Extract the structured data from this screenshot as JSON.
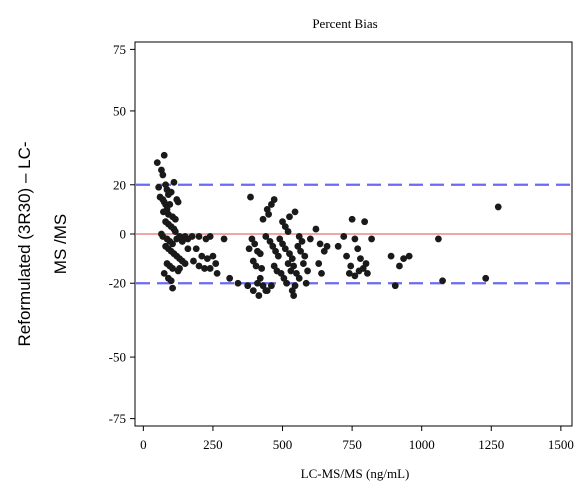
{
  "chart_data": {
    "type": "scatter",
    "title": "Percent Bias",
    "xlabel": "LC-MS/MS (ng/mL)",
    "ylabel_lines": [
      "Reformulated  (3R30) – LC-",
      "MS /MS"
    ],
    "xlim": [
      -30,
      1540
    ],
    "ylim": [
      -78,
      78
    ],
    "x_ticks": [
      0,
      250,
      500,
      750,
      1000,
      1250,
      1500
    ],
    "x_tick_labels": [
      "0",
      "250",
      "500",
      "750",
      "1000",
      "1250",
      "1500"
    ],
    "y_ticks": [
      75,
      50,
      20,
      0,
      -20,
      -50,
      -75
    ],
    "y_tick_labels": [
      "75",
      "50",
      "20",
      "0",
      "-20",
      "-50",
      "-75"
    ],
    "grid": false,
    "reference_lines": [
      {
        "y": 20,
        "style": "dashed",
        "color": "#6b6bf0"
      },
      {
        "y": 0,
        "style": "solid",
        "color": "#e87070"
      },
      {
        "y": -20,
        "style": "dashed",
        "color": "#6b6bf0"
      }
    ],
    "point_color": "#1a1a1a",
    "points": [
      [
        50,
        29
      ],
      [
        65,
        26
      ],
      [
        75,
        32
      ],
      [
        70,
        24
      ],
      [
        80,
        20
      ],
      [
        55,
        19
      ],
      [
        85,
        18
      ],
      [
        90,
        16
      ],
      [
        110,
        21
      ],
      [
        100,
        17
      ],
      [
        60,
        15
      ],
      [
        70,
        14
      ],
      [
        75,
        13
      ],
      [
        95,
        12
      ],
      [
        80,
        12
      ],
      [
        85,
        10
      ],
      [
        72,
        9
      ],
      [
        90,
        8
      ],
      [
        105,
        7
      ],
      [
        115,
        6
      ],
      [
        120,
        14
      ],
      [
        125,
        13
      ],
      [
        110,
        2
      ],
      [
        80,
        5
      ],
      [
        90,
        4
      ],
      [
        100,
        3
      ],
      [
        115,
        1
      ],
      [
        65,
        0
      ],
      [
        70,
        -1
      ],
      [
        85,
        -2
      ],
      [
        95,
        -3
      ],
      [
        105,
        -4
      ],
      [
        120,
        -2
      ],
      [
        130,
        -1
      ],
      [
        140,
        -3
      ],
      [
        150,
        -1
      ],
      [
        160,
        -2
      ],
      [
        175,
        -1
      ],
      [
        80,
        -5
      ],
      [
        90,
        -6
      ],
      [
        100,
        -7
      ],
      [
        110,
        -8
      ],
      [
        120,
        -9
      ],
      [
        130,
        -10
      ],
      [
        140,
        -11
      ],
      [
        85,
        -12
      ],
      [
        95,
        -13
      ],
      [
        105,
        -14
      ],
      [
        125,
        -15
      ],
      [
        75,
        -16
      ],
      [
        90,
        -18
      ],
      [
        100,
        -19
      ],
      [
        105,
        -22
      ],
      [
        140,
        -3
      ],
      [
        160,
        -6
      ],
      [
        150,
        -12
      ],
      [
        130,
        -14
      ],
      [
        200,
        -1
      ],
      [
        225,
        -2
      ],
      [
        240,
        -1
      ],
      [
        190,
        -6
      ],
      [
        210,
        -9
      ],
      [
        230,
        -10
      ],
      [
        250,
        -9
      ],
      [
        260,
        -12
      ],
      [
        220,
        -14
      ],
      [
        240,
        -14
      ],
      [
        200,
        -13
      ],
      [
        180,
        -11
      ],
      [
        265,
        -16
      ],
      [
        290,
        -2
      ],
      [
        310,
        -18
      ],
      [
        340,
        -20
      ],
      [
        375,
        -21
      ],
      [
        395,
        -23
      ],
      [
        385,
        15
      ],
      [
        390,
        -2
      ],
      [
        400,
        -4
      ],
      [
        380,
        -6
      ],
      [
        410,
        -7
      ],
      [
        420,
        -8
      ],
      [
        395,
        -11
      ],
      [
        405,
        -13
      ],
      [
        425,
        -14
      ],
      [
        420,
        -18
      ],
      [
        410,
        -20
      ],
      [
        430,
        -21
      ],
      [
        415,
        -25
      ],
      [
        440,
        -23
      ],
      [
        430,
        6
      ],
      [
        445,
        10
      ],
      [
        450,
        8
      ],
      [
        460,
        12
      ],
      [
        470,
        14
      ],
      [
        440,
        -1
      ],
      [
        455,
        -3
      ],
      [
        465,
        -5
      ],
      [
        475,
        -7
      ],
      [
        485,
        -9
      ],
      [
        470,
        -13
      ],
      [
        480,
        -15
      ],
      [
        495,
        -16
      ],
      [
        505,
        -18
      ],
      [
        515,
        -20
      ],
      [
        460,
        -21
      ],
      [
        445,
        -23
      ],
      [
        500,
        5
      ],
      [
        510,
        3
      ],
      [
        520,
        1
      ],
      [
        490,
        -2
      ],
      [
        500,
        -4
      ],
      [
        510,
        -6
      ],
      [
        525,
        -8
      ],
      [
        535,
        -10
      ],
      [
        520,
        -12
      ],
      [
        540,
        -13
      ],
      [
        530,
        -15
      ],
      [
        550,
        -16
      ],
      [
        560,
        -18
      ],
      [
        545,
        -21
      ],
      [
        535,
        -23
      ],
      [
        540,
        -25
      ],
      [
        525,
        7
      ],
      [
        545,
        9
      ],
      [
        560,
        -1
      ],
      [
        570,
        -3
      ],
      [
        555,
        -5
      ],
      [
        565,
        -7
      ],
      [
        580,
        -9
      ],
      [
        575,
        -12
      ],
      [
        590,
        -15
      ],
      [
        585,
        -20
      ],
      [
        600,
        -2
      ],
      [
        620,
        2
      ],
      [
        635,
        -4
      ],
      [
        630,
        -12
      ],
      [
        640,
        -16
      ],
      [
        650,
        -7
      ],
      [
        660,
        -5
      ],
      [
        700,
        -5
      ],
      [
        720,
        -1
      ],
      [
        730,
        -9
      ],
      [
        745,
        -13
      ],
      [
        750,
        6
      ],
      [
        760,
        -2
      ],
      [
        770,
        -6
      ],
      [
        780,
        -10
      ],
      [
        740,
        -16
      ],
      [
        760,
        -17
      ],
      [
        775,
        -15
      ],
      [
        790,
        -14
      ],
      [
        800,
        -12
      ],
      [
        795,
        5
      ],
      [
        805,
        -16
      ],
      [
        820,
        -2
      ],
      [
        890,
        -9
      ],
      [
        905,
        -21
      ],
      [
        920,
        -13
      ],
      [
        935,
        -10
      ],
      [
        955,
        -9
      ],
      [
        1060,
        -2
      ],
      [
        1075,
        -19
      ],
      [
        1230,
        -18
      ],
      [
        1275,
        11
      ]
    ]
  }
}
